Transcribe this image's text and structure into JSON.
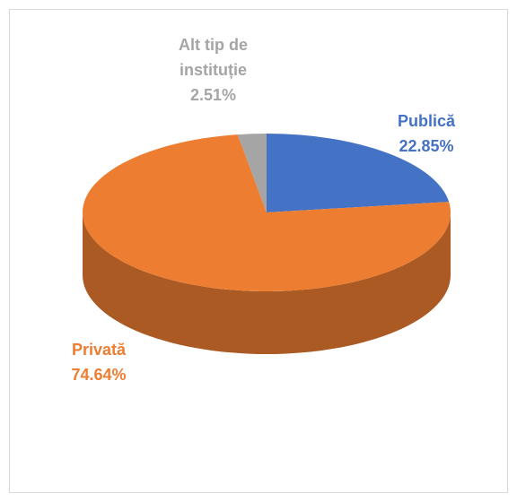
{
  "chart_data": {
    "type": "pie3d",
    "categories": [
      "Publică",
      "Privată",
      "Alt tip de instituție"
    ],
    "values": [
      22.85,
      74.64,
      2.51
    ],
    "value_labels": [
      "22.85%",
      "74.64%",
      "2.51%"
    ],
    "colors": [
      "#4472c4",
      "#ed7d31",
      "#a5a5a5"
    ]
  }
}
